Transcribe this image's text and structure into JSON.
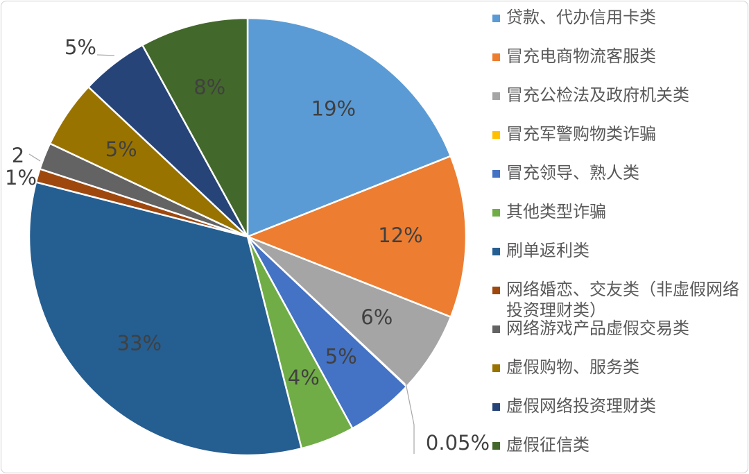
{
  "chart_data": {
    "type": "pie",
    "categories": [
      "贷款、代办信用卡类",
      "冒充电商物流客服类",
      "冒充公检法及政府机关类",
      "冒充军警购物类诈骗",
      "冒充领导、熟人类",
      "其他类型诈骗",
      "刷单返利类",
      "网络婚恋、交友类（非虚假网络投资理财类）",
      "网络游戏产品虚假交易类",
      "虚假购物、服务类",
      "虚假网络投资理财类",
      "虚假征信类"
    ],
    "values": [
      19,
      12,
      6,
      0.05,
      5,
      4,
      33,
      1,
      2,
      5,
      5,
      8
    ],
    "data_labels": [
      "19%",
      "12%",
      "6%",
      "0.05%",
      "5%",
      "4%",
      "33%",
      "1%",
      "2",
      "5%",
      "5%",
      "8%"
    ],
    "colors": [
      "#5b9bd5",
      "#ed7d31",
      "#a5a5a5",
      "#ffc000",
      "#4472c4",
      "#70ad47",
      "#255e91",
      "#9e480e",
      "#636363",
      "#997300",
      "#264478",
      "#43682b"
    ],
    "legend_position": "right"
  }
}
